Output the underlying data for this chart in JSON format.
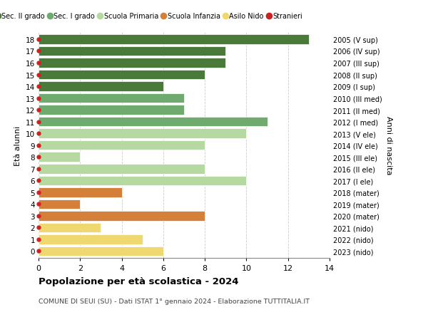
{
  "ages": [
    18,
    17,
    16,
    15,
    14,
    13,
    12,
    11,
    10,
    9,
    8,
    7,
    6,
    5,
    4,
    3,
    2,
    1,
    0
  ],
  "right_labels": [
    "2005 (V sup)",
    "2006 (IV sup)",
    "2007 (III sup)",
    "2008 (II sup)",
    "2009 (I sup)",
    "2010 (III med)",
    "2011 (II med)",
    "2012 (I med)",
    "2013 (V ele)",
    "2014 (IV ele)",
    "2015 (III ele)",
    "2016 (II ele)",
    "2017 (I ele)",
    "2018 (mater)",
    "2019 (mater)",
    "2020 (mater)",
    "2021 (nido)",
    "2022 (nido)",
    "2023 (nido)"
  ],
  "values": [
    13,
    9,
    9,
    8,
    6,
    7,
    7,
    11,
    10,
    8,
    2,
    8,
    10,
    4,
    2,
    8,
    3,
    5,
    6
  ],
  "bar_colors": [
    "#4a7a3a",
    "#4a7a3a",
    "#4a7a3a",
    "#4a7a3a",
    "#4a7a3a",
    "#6faa6f",
    "#6faa6f",
    "#6faa6f",
    "#b5d9a0",
    "#b5d9a0",
    "#b5d9a0",
    "#b5d9a0",
    "#b5d9a0",
    "#d4803a",
    "#d4803a",
    "#d4803a",
    "#f0d870",
    "#f0d870",
    "#f0d870"
  ],
  "stranieri_color": "#cc2222",
  "legend_labels": [
    "Sec. II grado",
    "Sec. I grado",
    "Scuola Primaria",
    "Scuola Infanzia",
    "Asilo Nido",
    "Stranieri"
  ],
  "legend_colors": [
    "#4a7a3a",
    "#6faa6f",
    "#b5d9a0",
    "#d4803a",
    "#f0d870",
    "#cc2222"
  ],
  "title": "Popolazione per età scolastica - 2024",
  "subtitle": "COMUNE DI SEUI (SU) - Dati ISTAT 1° gennaio 2024 - Elaborazione TUTTITALIA.IT",
  "ylabel_left": "Età alunni",
  "ylabel_right": "Anni di nascita",
  "xlim": [
    0,
    14
  ],
  "xticks": [
    0,
    2,
    4,
    6,
    8,
    10,
    12,
    14
  ],
  "background_color": "#ffffff",
  "grid_color": "#cccccc"
}
